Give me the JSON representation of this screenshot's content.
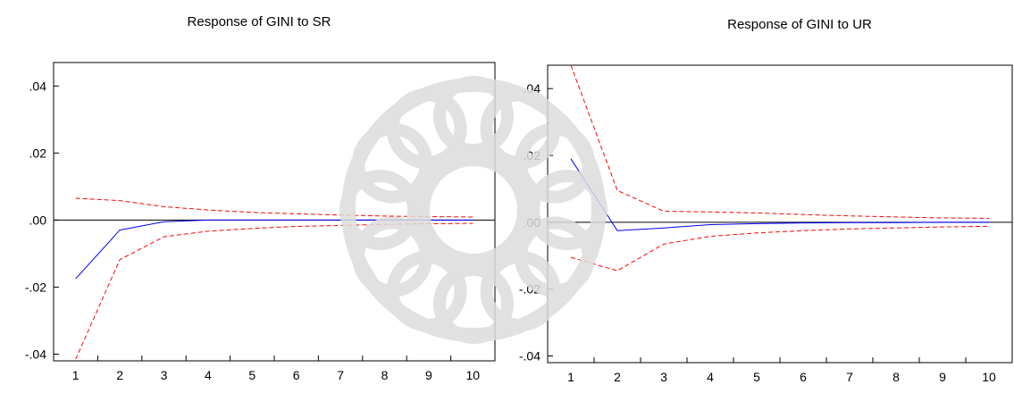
{
  "chart_data": [
    {
      "type": "line",
      "title": "Response of GINI to SR",
      "xlabel": "",
      "ylabel": "",
      "x": [
        1,
        2,
        3,
        4,
        5,
        6,
        7,
        8,
        9,
        10
      ],
      "xticks": [
        "1",
        "2",
        "3",
        "4",
        "5",
        "6",
        "7",
        "8",
        "9",
        "10"
      ],
      "ylim": [
        -0.042,
        0.047
      ],
      "yticks": [
        -0.04,
        -0.02,
        0.0,
        0.02,
        0.04
      ],
      "ytick_labels": [
        "-.04",
        "-.02",
        ".00",
        ".02",
        ".04"
      ],
      "zero_line": true,
      "series": [
        {
          "role": "response",
          "color": "#0000ff",
          "dash": "solid",
          "values": [
            -0.0175,
            -0.003,
            -0.0005,
            0.0,
            0.0,
            0.0,
            0.0,
            0.0,
            0.0,
            0.0
          ]
        },
        {
          "role": "upper band",
          "color": "#ff0000",
          "dash": "dashed",
          "values": [
            0.0065,
            0.0058,
            0.004,
            0.003,
            0.0023,
            0.0019,
            0.0015,
            0.0012,
            0.001,
            0.0009
          ]
        },
        {
          "role": "lower band",
          "color": "#ff0000",
          "dash": "dashed",
          "values": [
            -0.0415,
            -0.0118,
            -0.005,
            -0.0033,
            -0.0025,
            -0.0019,
            -0.0016,
            -0.0013,
            -0.0011,
            -0.001
          ]
        }
      ]
    },
    {
      "type": "line",
      "title": "Response of GINI to UR",
      "xlabel": "",
      "ylabel": "",
      "x": [
        1,
        2,
        3,
        4,
        5,
        6,
        7,
        8,
        9,
        10
      ],
      "xticks": [
        "1",
        "2",
        "3",
        "4",
        "5",
        "6",
        "7",
        "8",
        "9",
        "10"
      ],
      "ylim": [
        -0.042,
        0.047
      ],
      "yticks": [
        -0.04,
        -0.02,
        0.0,
        0.02,
        0.04
      ],
      "ytick_labels": [
        "-.04",
        "-.02",
        ".00",
        ".02",
        ".04"
      ],
      "zero_line": true,
      "series": [
        {
          "role": "response",
          "color": "#0000ff",
          "dash": "solid",
          "values": [
            0.019,
            -0.0025,
            -0.0017,
            -0.0007,
            -0.0004,
            -0.0002,
            -0.0001,
            -0.0001,
            0.0,
            0.0
          ]
        },
        {
          "role": "upper band",
          "color": "#ff0000",
          "dash": "dashed",
          "values": [
            0.047,
            0.0095,
            0.0033,
            0.0031,
            0.0028,
            0.0023,
            0.0019,
            0.0016,
            0.0013,
            0.0012
          ]
        },
        {
          "role": "lower band",
          "color": "#ff0000",
          "dash": "dashed",
          "values": [
            -0.0105,
            -0.0145,
            -0.0065,
            -0.0042,
            -0.0032,
            -0.0025,
            -0.002,
            -0.0017,
            -0.0014,
            -0.0012
          ]
        }
      ]
    }
  ]
}
